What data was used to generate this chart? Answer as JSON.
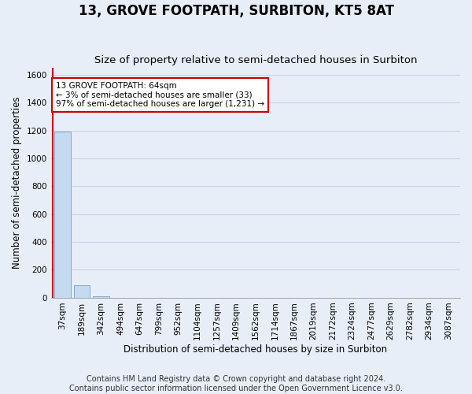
{
  "title": "13, GROVE FOOTPATH, SURBITON, KT5 8AT",
  "subtitle": "Size of property relative to semi-detached houses in Surbiton",
  "xlabel": "Distribution of semi-detached houses by size in Surbiton",
  "ylabel": "Number of semi-detached properties",
  "bin_labels": [
    "37sqm",
    "189sqm",
    "342sqm",
    "494sqm",
    "647sqm",
    "799sqm",
    "952sqm",
    "1104sqm",
    "1257sqm",
    "1409sqm",
    "1562sqm",
    "1714sqm",
    "1867sqm",
    "2019sqm",
    "2172sqm",
    "2324sqm",
    "2477sqm",
    "2629sqm",
    "2782sqm",
    "2934sqm",
    "3087sqm"
  ],
  "bin_values": [
    1192,
    90,
    12,
    0,
    0,
    0,
    0,
    0,
    0,
    0,
    0,
    0,
    0,
    0,
    0,
    0,
    0,
    0,
    0,
    0,
    0
  ],
  "bar_color": "#c5d9f0",
  "bar_edge_color": "#7aacce",
  "ylim": [
    0,
    1650
  ],
  "yticks": [
    0,
    200,
    400,
    600,
    800,
    1000,
    1200,
    1400,
    1600
  ],
  "annotation_text": "13 GROVE FOOTPATH: 64sqm\n← 3% of semi-detached houses are smaller (33)\n97% of semi-detached houses are larger (1,231) →",
  "annotation_box_color": "#ffffff",
  "annotation_border_color": "#cc0000",
  "red_line_color": "#cc0000",
  "footer_line1": "Contains HM Land Registry data © Crown copyright and database right 2024.",
  "footer_line2": "Contains public sector information licensed under the Open Government Licence v3.0.",
  "background_color": "#e8eef8",
  "grid_color": "#c8d4e8",
  "title_fontsize": 12,
  "subtitle_fontsize": 9.5,
  "axis_label_fontsize": 8.5,
  "tick_fontsize": 7.5,
  "footer_fontsize": 7
}
